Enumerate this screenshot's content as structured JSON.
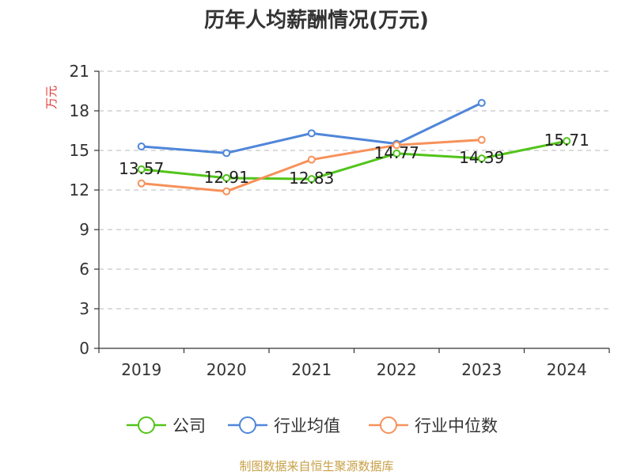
{
  "chart_data": {
    "type": "line",
    "title": "历年人均薪酬情况(万元)",
    "ylabel": "万元",
    "xlabel": "",
    "categories": [
      "2019",
      "2020",
      "2021",
      "2022",
      "2023",
      "2024"
    ],
    "ylim": [
      0,
      21
    ],
    "yticks": [
      0,
      3,
      6,
      9,
      12,
      15,
      18,
      21
    ],
    "grid": true,
    "legend_position": "bottom",
    "series": [
      {
        "name": "公司",
        "color": "#52c41a",
        "values": [
          13.57,
          12.91,
          12.83,
          14.77,
          14.39,
          15.71
        ],
        "labeled": true
      },
      {
        "name": "行业均值",
        "color": "#4f86d9",
        "values": [
          15.3,
          14.8,
          16.3,
          15.5,
          18.6,
          null
        ],
        "labeled": false
      },
      {
        "name": "行业中位数",
        "color": "#f7915a",
        "values": [
          12.5,
          11.9,
          14.3,
          15.4,
          15.8,
          null
        ],
        "labeled": false
      }
    ],
    "data_labels": [
      "13.57",
      "12.91",
      "12.83",
      "14.77",
      "14.39",
      "15.71"
    ],
    "source": "制图数据来自恒生聚源数据库"
  }
}
